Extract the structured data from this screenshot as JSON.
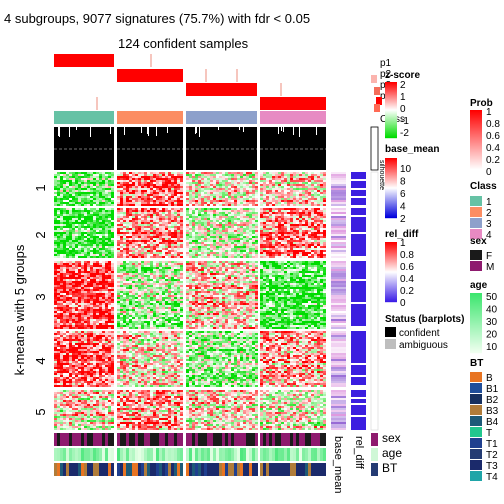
{
  "chart_data": {
    "type": "heatmap",
    "title": "4 subgroups, 9077 signatures (75.7%) with fdr < 0.05",
    "subtitle": "124 confident samples",
    "ylabel": "k-means with 5 groups",
    "row_groups": [
      "1",
      "2",
      "3",
      "4",
      "5"
    ],
    "column_subgroups": [
      "1",
      "2",
      "3",
      "4"
    ],
    "top_annotation_labels": [
      "p1",
      "p2",
      "p3",
      "p4",
      "Class",
      "silhouette"
    ],
    "top_annotation_side_labels": [
      "Class",
      "silhouette"
    ],
    "row_annotation_labels": [
      "base_mean",
      "rel_diff"
    ],
    "bottom_annotation_labels": [
      "sex",
      "age",
      "BT"
    ],
    "legends": {
      "prob": {
        "title": "Prob",
        "ticks": [
          "1",
          "0.8",
          "0.6",
          "0.4",
          "0.2",
          "0"
        ]
      },
      "class": {
        "title": "Class",
        "items": [
          {
            "label": "1",
            "color": "#66C2A5"
          },
          {
            "label": "2",
            "color": "#FC8D62"
          },
          {
            "label": "3",
            "color": "#8DA0CB"
          },
          {
            "label": "4",
            "color": "#E78AC3"
          }
        ]
      },
      "sex": {
        "title": "sex",
        "items": [
          {
            "label": "F",
            "color": "#1a1a1a"
          },
          {
            "label": "M",
            "color": "#8E1A6E"
          }
        ]
      },
      "age": {
        "title": "age",
        "ticks": [
          "50",
          "40",
          "30",
          "20",
          "10"
        ]
      },
      "bt": {
        "title": "BT",
        "items": [
          {
            "label": "B",
            "color": "#E87422"
          },
          {
            "label": "B1",
            "color": "#1F4E9A"
          },
          {
            "label": "B2",
            "color": "#16305F"
          },
          {
            "label": "B3",
            "color": "#B07C3A"
          },
          {
            "label": "B4",
            "color": "#1D5A78"
          },
          {
            "label": "T",
            "color": "#22C78E"
          },
          {
            "label": "T1",
            "color": "#1F3F8F"
          },
          {
            "label": "T2",
            "color": "#243B73"
          },
          {
            "label": "T3",
            "color": "#1B2A6B"
          },
          {
            "label": "T4",
            "color": "#1FA5A8"
          }
        ]
      },
      "zscore": {
        "title": "z-score",
        "ticks": [
          "2",
          "1",
          "0",
          "-1",
          "-2"
        ]
      },
      "base_mean": {
        "title": "base_mean",
        "ticks": [
          "10",
          "8",
          "6",
          "4",
          "2"
        ]
      },
      "rel_diff": {
        "title": "rel_diff",
        "ticks": [
          "1",
          "0.8",
          "0.6",
          "0.4",
          "0.2",
          "0"
        ]
      },
      "status": {
        "title": "Status (barplots)",
        "items": [
          {
            "label": "confident",
            "color": "#000000"
          },
          {
            "label": "ambiguous",
            "color": "#BEBEBE"
          }
        ]
      }
    }
  }
}
